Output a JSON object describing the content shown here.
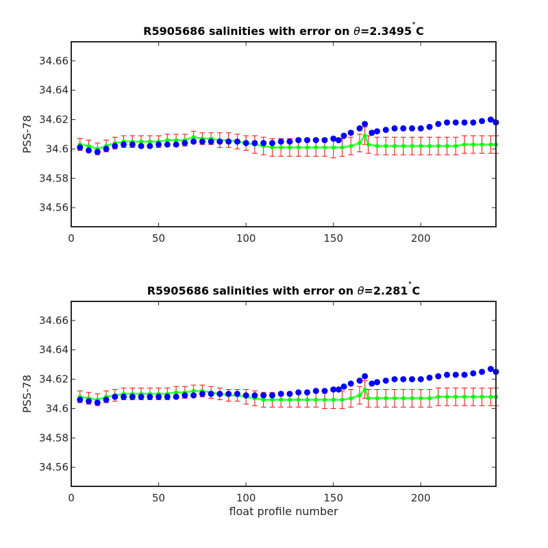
{
  "figure": {
    "xlabel": "float profile number"
  },
  "chart_data": [
    {
      "type": "scatter",
      "title": "R5905686 salinities with error on θ=2.3495˚C",
      "title_prefix": "R5905686 salinities with error on ",
      "title_theta": "θ",
      "title_value": "=2.3495",
      "title_deg": "˚",
      "title_unit": "C",
      "xlabel": "",
      "ylabel": "PSS-78",
      "xlim": [
        0,
        243
      ],
      "ylim": [
        34.547,
        34.673
      ],
      "xticks": [
        0,
        50,
        100,
        150,
        200
      ],
      "yticks": [
        34.56,
        34.58,
        34.6,
        34.62,
        34.64,
        34.66
      ],
      "ytick_labels": [
        "34.56",
        "34.58",
        "34.6",
        "34.62",
        "34.64",
        "34.66"
      ],
      "grid": false,
      "colors": {
        "measured": "#0000ff",
        "mapped": "#00ff00",
        "error": "#ff0000"
      },
      "series": [
        {
          "role": "measured",
          "x": [
            5,
            10,
            15,
            20,
            25,
            30,
            35,
            40,
            45,
            50,
            55,
            60,
            65,
            70,
            75,
            80,
            85,
            90,
            95,
            100,
            105,
            110,
            115,
            120,
            125,
            130,
            135,
            140,
            145,
            150,
            153,
            156,
            160,
            165,
            168,
            172,
            175,
            180,
            185,
            190,
            195,
            200,
            205,
            210,
            215,
            220,
            225,
            230,
            235,
            240,
            243
          ],
          "y": [
            34.601,
            34.599,
            34.598,
            34.6,
            34.602,
            34.603,
            34.603,
            34.602,
            34.602,
            34.603,
            34.603,
            34.603,
            34.604,
            34.605,
            34.605,
            34.605,
            34.605,
            34.605,
            34.605,
            34.604,
            34.604,
            34.604,
            34.604,
            34.605,
            34.605,
            34.606,
            34.606,
            34.606,
            34.606,
            34.607,
            34.606,
            34.609,
            34.611,
            34.614,
            34.617,
            34.611,
            34.612,
            34.613,
            34.614,
            34.614,
            34.614,
            34.614,
            34.615,
            34.617,
            34.618,
            34.618,
            34.618,
            34.618,
            34.619,
            34.62,
            34.618
          ]
        },
        {
          "role": "mapped",
          "x": [
            5,
            10,
            15,
            20,
            25,
            30,
            35,
            40,
            45,
            50,
            55,
            60,
            65,
            70,
            75,
            80,
            85,
            90,
            95,
            100,
            105,
            110,
            115,
            120,
            125,
            130,
            135,
            140,
            145,
            150,
            155,
            160,
            165,
            168,
            170,
            175,
            180,
            185,
            190,
            195,
            200,
            205,
            210,
            215,
            220,
            225,
            230,
            235,
            240,
            243
          ],
          "y": [
            34.603,
            34.602,
            34.6,
            34.602,
            34.604,
            34.605,
            34.605,
            34.605,
            34.605,
            34.605,
            34.606,
            34.606,
            34.606,
            34.608,
            34.607,
            34.607,
            34.606,
            34.606,
            34.605,
            34.604,
            34.603,
            34.602,
            34.601,
            34.601,
            34.601,
            34.601,
            34.601,
            34.601,
            34.601,
            34.601,
            34.601,
            34.602,
            34.604,
            34.609,
            34.603,
            34.602,
            34.602,
            34.602,
            34.602,
            34.602,
            34.602,
            34.602,
            34.602,
            34.602,
            34.602,
            34.603,
            34.603,
            34.603,
            34.603,
            34.603
          ],
          "error": [
            0.004,
            0.004,
            0.004,
            0.004,
            0.004,
            0.004,
            0.004,
            0.004,
            0.004,
            0.004,
            0.004,
            0.004,
            0.004,
            0.004,
            0.004,
            0.004,
            0.005,
            0.005,
            0.005,
            0.005,
            0.006,
            0.006,
            0.006,
            0.006,
            0.006,
            0.006,
            0.006,
            0.006,
            0.006,
            0.007,
            0.006,
            0.006,
            0.006,
            0.006,
            0.006,
            0.006,
            0.006,
            0.006,
            0.006,
            0.006,
            0.006,
            0.006,
            0.006,
            0.006,
            0.006,
            0.006,
            0.006,
            0.006,
            0.006,
            0.006
          ]
        }
      ]
    },
    {
      "type": "scatter",
      "title": "R5905686 salinities with error on θ=2.281˚C",
      "title_prefix": "R5905686 salinities with error on ",
      "title_theta": "θ",
      "title_value": "=2.281",
      "title_deg": "˚",
      "title_unit": "C",
      "xlabel": "float profile number",
      "ylabel": "PSS-78",
      "xlim": [
        0,
        243
      ],
      "ylim": [
        34.547,
        34.673
      ],
      "xticks": [
        0,
        50,
        100,
        150,
        200
      ],
      "yticks": [
        34.56,
        34.58,
        34.6,
        34.62,
        34.64,
        34.66
      ],
      "ytick_labels": [
        "34.56",
        "34.58",
        "34.6",
        "34.62",
        "34.64",
        "34.66"
      ],
      "grid": false,
      "colors": {
        "measured": "#0000ff",
        "mapped": "#00ff00",
        "error": "#ff0000"
      },
      "series": [
        {
          "role": "measured",
          "x": [
            5,
            10,
            15,
            20,
            25,
            30,
            35,
            40,
            45,
            50,
            55,
            60,
            65,
            70,
            75,
            80,
            85,
            90,
            95,
            100,
            105,
            110,
            115,
            120,
            125,
            130,
            135,
            140,
            145,
            150,
            153,
            156,
            160,
            165,
            168,
            172,
            175,
            180,
            185,
            190,
            195,
            200,
            205,
            210,
            215,
            220,
            225,
            230,
            235,
            240,
            243
          ],
          "y": [
            34.606,
            34.605,
            34.604,
            34.606,
            34.608,
            34.608,
            34.608,
            34.608,
            34.608,
            34.608,
            34.608,
            34.608,
            34.609,
            34.609,
            34.61,
            34.61,
            34.61,
            34.61,
            34.61,
            34.609,
            34.609,
            34.609,
            34.609,
            34.61,
            34.61,
            34.611,
            34.611,
            34.612,
            34.612,
            34.613,
            34.613,
            34.615,
            34.617,
            34.619,
            34.622,
            34.617,
            34.618,
            34.619,
            34.62,
            34.62,
            34.62,
            34.62,
            34.621,
            34.622,
            34.623,
            34.623,
            34.623,
            34.624,
            34.625,
            34.627,
            34.625
          ]
        },
        {
          "role": "mapped",
          "x": [
            5,
            10,
            15,
            20,
            25,
            30,
            35,
            40,
            45,
            50,
            55,
            60,
            65,
            70,
            75,
            80,
            85,
            90,
            95,
            100,
            105,
            110,
            115,
            120,
            125,
            130,
            135,
            140,
            145,
            150,
            155,
            160,
            165,
            168,
            170,
            175,
            180,
            185,
            190,
            195,
            200,
            205,
            210,
            215,
            220,
            225,
            230,
            235,
            240,
            243
          ],
          "y": [
            34.608,
            34.607,
            34.606,
            34.608,
            34.609,
            34.61,
            34.61,
            34.61,
            34.61,
            34.61,
            34.61,
            34.611,
            34.611,
            34.612,
            34.612,
            34.611,
            34.61,
            34.609,
            34.609,
            34.608,
            34.607,
            34.606,
            34.606,
            34.606,
            34.606,
            34.606,
            34.606,
            34.606,
            34.606,
            34.606,
            34.606,
            34.607,
            34.609,
            34.613,
            34.607,
            34.607,
            34.607,
            34.607,
            34.607,
            34.607,
            34.607,
            34.607,
            34.608,
            34.608,
            34.608,
            34.608,
            34.608,
            34.608,
            34.608,
            34.608
          ],
          "error": [
            0.004,
            0.004,
            0.004,
            0.004,
            0.004,
            0.004,
            0.004,
            0.004,
            0.004,
            0.004,
            0.004,
            0.004,
            0.004,
            0.004,
            0.004,
            0.004,
            0.004,
            0.004,
            0.004,
            0.005,
            0.005,
            0.005,
            0.005,
            0.005,
            0.005,
            0.005,
            0.005,
            0.005,
            0.006,
            0.006,
            0.006,
            0.006,
            0.006,
            0.006,
            0.006,
            0.006,
            0.006,
            0.006,
            0.006,
            0.006,
            0.006,
            0.006,
            0.006,
            0.006,
            0.006,
            0.006,
            0.006,
            0.006,
            0.006,
            0.006
          ]
        }
      ]
    }
  ]
}
